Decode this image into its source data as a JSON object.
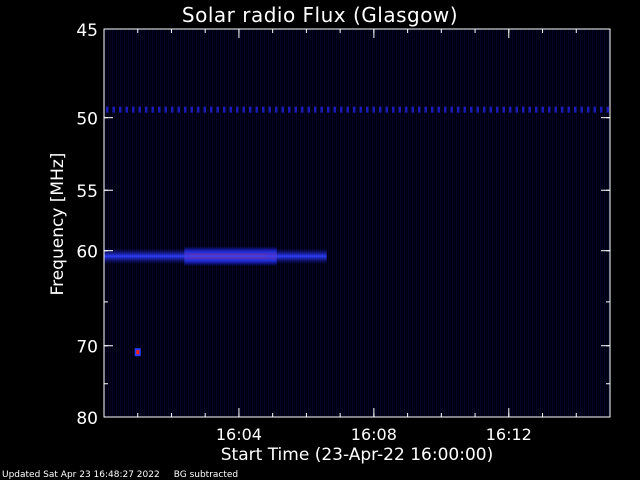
{
  "chart_data": {
    "type": "heatmap",
    "title": "Solar radio Flux (Glasgow)",
    "xlabel": "Start Time (23-Apr-22 16:00:00)",
    "ylabel": "Frequency [MHz]",
    "x_ticks": [
      "16:04",
      "16:08",
      "16:12"
    ],
    "y_ticks": [
      "45",
      "50",
      "55",
      "60",
      "70",
      "80"
    ],
    "x_range_minutes": [
      0,
      15
    ],
    "y_range_mhz": [
      45,
      80
    ],
    "y_scale": "reciprocal",
    "features": [
      {
        "kind": "burst",
        "t_start": 2.5,
        "t_end": 5.0,
        "freq": 60.5,
        "intensity": "high"
      },
      {
        "kind": "band",
        "t_start": 0,
        "t_end": 6.6,
        "freq": 60.5,
        "intensity": "medium"
      },
      {
        "kind": "interference_line",
        "freq": 49.5,
        "intensity": "low"
      },
      {
        "kind": "spot",
        "t": 1.0,
        "freq": 70.8,
        "intensity": "high"
      }
    ],
    "colors": {
      "background": "#000010",
      "low": "#1010c0",
      "mid": "#3040ff",
      "high": "#ff2000",
      "peak": "#ffd000"
    }
  },
  "footer": {
    "updated": "Updated Sat Apr 23 16:48:27 2022",
    "note": "BG subtracted"
  }
}
